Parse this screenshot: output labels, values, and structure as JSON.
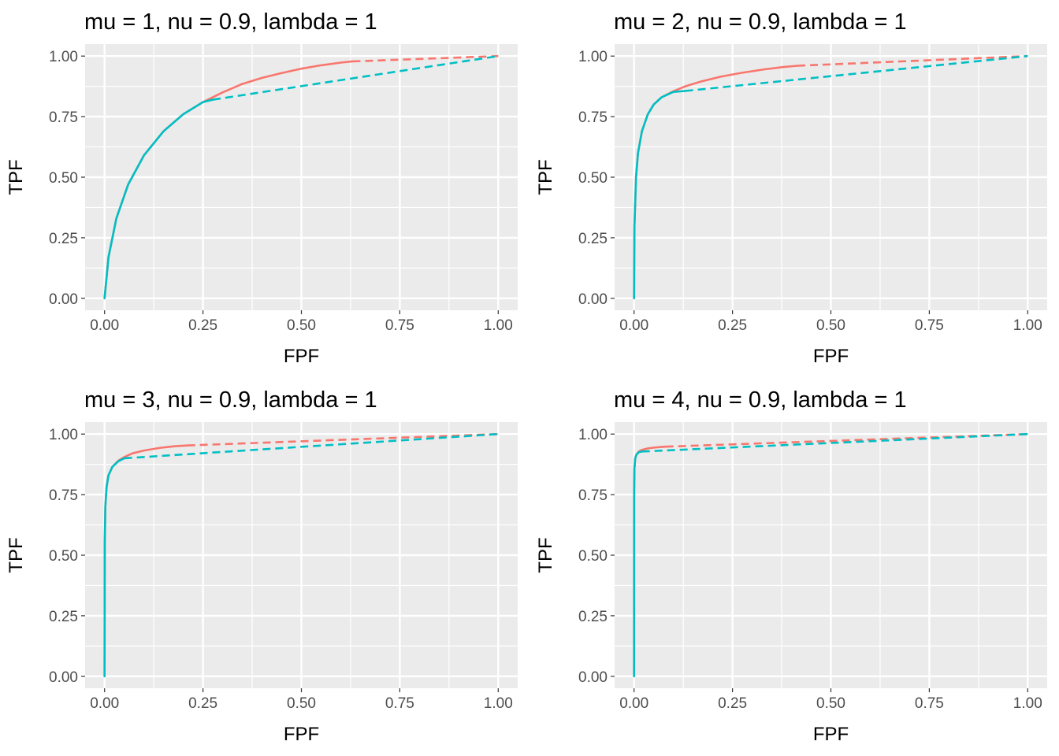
{
  "colors": {
    "series_red": "#F8766D",
    "series_teal": "#00BFC4",
    "panel_bg": "#EBEBEB",
    "grid": "#FFFFFF"
  },
  "chart_data": [
    {
      "type": "line",
      "title": "mu = 1, nu = 0.9, lambda = 1",
      "xlabel": "FPF",
      "ylabel": "TPF",
      "xlim": [
        0,
        1
      ],
      "ylim": [
        0,
        1
      ],
      "xticks": [
        "0.00",
        "0.25",
        "0.50",
        "0.75",
        "1.00"
      ],
      "yticks": [
        "0.00",
        "0.25",
        "0.50",
        "0.75",
        "1.00"
      ],
      "grid": true,
      "legend": "none",
      "series": [
        {
          "color": "red",
          "solid": {
            "x": [
              0,
              0.01,
              0.03,
              0.06,
              0.1,
              0.15,
              0.2,
              0.25,
              0.3,
              0.35,
              0.4,
              0.45,
              0.5,
              0.55,
              0.6,
              0.63
            ],
            "y": [
              0,
              0.17,
              0.33,
              0.47,
              0.59,
              0.69,
              0.76,
              0.81,
              0.85,
              0.885,
              0.91,
              0.93,
              0.948,
              0.962,
              0.973,
              0.978
            ]
          },
          "dashed": {
            "x": [
              0.63,
              1.0
            ],
            "y": [
              0.978,
              1.0
            ]
          }
        },
        {
          "color": "teal",
          "solid": {
            "x": [
              0,
              0.01,
              0.03,
              0.06,
              0.1,
              0.15,
              0.2,
              0.25,
              0.275
            ],
            "y": [
              0,
              0.17,
              0.33,
              0.47,
              0.59,
              0.69,
              0.76,
              0.81,
              0.82
            ]
          },
          "dashed": {
            "x": [
              0.275,
              1.0
            ],
            "y": [
              0.82,
              1.0
            ]
          }
        }
      ]
    },
    {
      "type": "line",
      "title": "mu = 2, nu = 0.9, lambda = 1",
      "xlabel": "FPF",
      "ylabel": "TPF",
      "xlim": [
        0,
        1
      ],
      "ylim": [
        0,
        1
      ],
      "xticks": [
        "0.00",
        "0.25",
        "0.50",
        "0.75",
        "1.00"
      ],
      "yticks": [
        "0.00",
        "0.25",
        "0.50",
        "0.75",
        "1.00"
      ],
      "grid": true,
      "legend": "none",
      "series": [
        {
          "color": "red",
          "solid": {
            "x": [
              0,
              0.001,
              0.005,
              0.01,
              0.02,
              0.035,
              0.05,
              0.07,
              0.1,
              0.13,
              0.17,
              0.22,
              0.27,
              0.33,
              0.38,
              0.415
            ],
            "y": [
              0,
              0.3,
              0.5,
              0.6,
              0.69,
              0.76,
              0.8,
              0.83,
              0.855,
              0.875,
              0.895,
              0.915,
              0.93,
              0.945,
              0.955,
              0.96
            ]
          },
          "dashed": {
            "x": [
              0.415,
              1.0
            ],
            "y": [
              0.96,
              1.0
            ]
          }
        },
        {
          "color": "teal",
          "solid": {
            "x": [
              0,
              0.001,
              0.005,
              0.01,
              0.02,
              0.035,
              0.05,
              0.07,
              0.1,
              0.13
            ],
            "y": [
              0,
              0.3,
              0.5,
              0.6,
              0.69,
              0.76,
              0.8,
              0.83,
              0.852,
              0.856
            ]
          },
          "dashed": {
            "x": [
              0.13,
              1.0
            ],
            "y": [
              0.856,
              1.0
            ]
          }
        }
      ]
    },
    {
      "type": "line",
      "title": "mu = 3, nu = 0.9, lambda = 1",
      "xlabel": "FPF",
      "ylabel": "TPF",
      "xlim": [
        0,
        1
      ],
      "ylim": [
        0,
        1
      ],
      "xticks": [
        "0.00",
        "0.25",
        "0.50",
        "0.75",
        "1.00"
      ],
      "yticks": [
        "0.00",
        "0.25",
        "0.50",
        "0.75",
        "1.00"
      ],
      "grid": true,
      "legend": "none",
      "series": [
        {
          "color": "red",
          "solid": {
            "x": [
              0,
              0.0005,
              0.002,
              0.005,
              0.01,
              0.02,
              0.035,
              0.05,
              0.07,
              0.1,
              0.14,
              0.18,
              0.21
            ],
            "y": [
              0,
              0.55,
              0.7,
              0.78,
              0.83,
              0.865,
              0.89,
              0.905,
              0.92,
              0.932,
              0.943,
              0.95,
              0.953
            ]
          },
          "dashed": {
            "x": [
              0.21,
              1.0
            ],
            "y": [
              0.953,
              1.0
            ]
          }
        },
        {
          "color": "teal",
          "solid": {
            "x": [
              0,
              0.0005,
              0.002,
              0.005,
              0.01,
              0.02,
              0.035,
              0.05
            ],
            "y": [
              0,
              0.55,
              0.7,
              0.78,
              0.83,
              0.865,
              0.888,
              0.9
            ]
          },
          "dashed": {
            "x": [
              0.05,
              1.0
            ],
            "y": [
              0.9,
              1.0
            ]
          }
        }
      ]
    },
    {
      "type": "line",
      "title": "mu = 4, nu = 0.9, lambda = 1",
      "xlabel": "FPF",
      "ylabel": "TPF",
      "xlim": [
        0,
        1
      ],
      "ylim": [
        0,
        1
      ],
      "xticks": [
        "0.00",
        "0.25",
        "0.50",
        "0.75",
        "1.00"
      ],
      "yticks": [
        "0.00",
        "0.25",
        "0.50",
        "0.75",
        "1.00"
      ],
      "grid": true,
      "legend": "none",
      "series": [
        {
          "color": "red",
          "solid": {
            "x": [
              0,
              0.0002,
              0.001,
              0.003,
              0.006,
              0.012,
              0.02,
              0.035,
              0.055,
              0.08
            ],
            "y": [
              0,
              0.75,
              0.86,
              0.9,
              0.915,
              0.928,
              0.935,
              0.941,
              0.945,
              0.948
            ]
          },
          "dashed": {
            "x": [
              0.08,
              1.0
            ],
            "y": [
              0.948,
              1.0
            ]
          }
        },
        {
          "color": "teal",
          "solid": {
            "x": [
              0,
              0.0002,
              0.001,
              0.003,
              0.006,
              0.012,
              0.02
            ],
            "y": [
              0,
              0.75,
              0.86,
              0.9,
              0.915,
              0.925,
              0.928
            ]
          },
          "dashed": {
            "x": [
              0.02,
              1.0
            ],
            "y": [
              0.928,
              1.0
            ]
          }
        }
      ]
    }
  ]
}
